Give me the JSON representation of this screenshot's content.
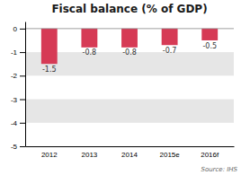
{
  "chart_data": {
    "type": "bar",
    "title": "Fiscal balance (% of GDP)",
    "categories": [
      "2012",
      "2013",
      "2014",
      "2015e",
      "2016f"
    ],
    "values": [
      -1.5,
      -0.8,
      -0.8,
      -0.7,
      -0.5
    ],
    "color": "#d63a55",
    "ylim": [
      -5,
      0.3
    ],
    "yticks": [
      0,
      -1,
      -2,
      -3,
      -4,
      -5
    ],
    "grid": true,
    "data_labels": true,
    "annotations": [
      "Source: IHS"
    ]
  }
}
